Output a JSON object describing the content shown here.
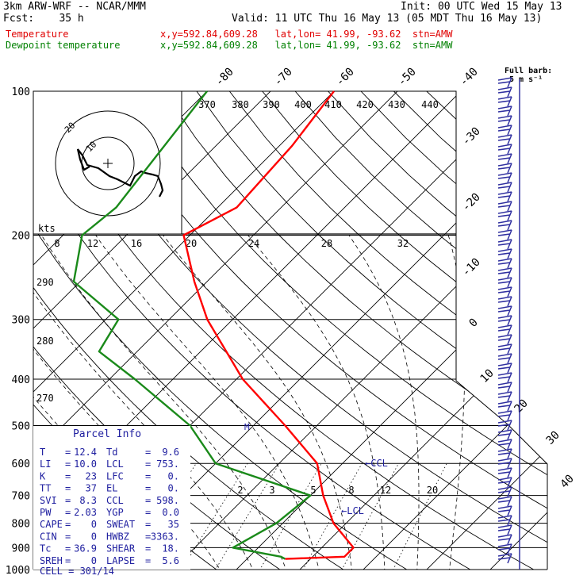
{
  "header": {
    "model": "3km ARW-WRF -- NCAR/MMM",
    "init": "Init: 00 UTC Wed 15 May 13",
    "fcst": "Fcst:    35 h",
    "valid": "Valid: 11 UTC Thu 16 May 13 (05 MDT Thu 16 May 13)"
  },
  "series_info": [
    {
      "name": "Temperature",
      "info": "x,y=592.84,609.28   lat,lon= 41.99, -93.62  stn=AMW",
      "color": "#e00000"
    },
    {
      "name": "Dewpoint temperature",
      "info": "x,y=592.84,609.28   lat,lon= 41.99, -93.62  stn=AMW",
      "color": "#008000"
    }
  ],
  "colors": {
    "temperature": "#ff0000",
    "dewpoint": "#1a8a1a",
    "barbs": "#3030a0",
    "grid": "#000000",
    "parcel": "#2020a0"
  },
  "wind_legend": {
    "line1": "Full barb:",
    "line2": "5 m s⁻¹"
  },
  "hodograph": {
    "unit_label": "kts",
    "ring_labels": [
      "20",
      "10"
    ]
  },
  "chart_data": {
    "type": "line",
    "title": "",
    "pressure_levels": [
      100,
      200,
      300,
      400,
      500,
      600,
      700,
      800,
      900,
      1000
    ],
    "ylim": [
      1000,
      100
    ],
    "xlabel": "",
    "ylabel": "",
    "isotherm_labels": [
      "-80",
      "-70",
      "-60",
      "-50",
      "-40",
      "-30",
      "-20",
      "-10",
      "0",
      "10",
      "20",
      "30",
      "40"
    ],
    "theta_labels": [
      "370",
      "380",
      "390",
      "400",
      "410",
      "420",
      "430",
      "440"
    ],
    "mixing_ratio_labels": [
      "8",
      "12",
      "16",
      "20",
      "24",
      "28",
      "32"
    ],
    "mixing_ratio_labels_low": [
      "2",
      "3",
      "5",
      "8",
      "12",
      "20"
    ],
    "adiabat_labels": [
      "290",
      "280",
      "270"
    ],
    "series": [
      {
        "name": "Temperature",
        "p": [
          100,
          130,
          175,
          200,
          250,
          300,
          400,
          500,
          600,
          700,
          800,
          900,
          940,
          950
        ],
        "t": [
          -60,
          -58,
          -57,
          -61,
          -52,
          -44,
          -29,
          -15,
          -4,
          2,
          8,
          15,
          15,
          6
        ]
      },
      {
        "name": "Dewpoint temperature",
        "p": [
          100,
          175,
          200,
          250,
          300,
          350,
          400,
          500,
          600,
          700,
          800,
          900,
          940,
          950
        ],
        "t": [
          -80,
          -76,
          -77,
          -71,
          -58,
          -56,
          -46,
          -30,
          -20,
          0,
          -1,
          -4,
          5,
          6
        ]
      }
    ],
    "annotations": [
      "CCL",
      "LCL"
    ]
  },
  "parcel_info": {
    "title": "Parcel Info",
    "rows": [
      {
        "k1": "T",
        "v1": "12.4",
        "k2": "Td",
        "v2": "9.6"
      },
      {
        "k1": "LI",
        "v1": "10.0",
        "k2": "LCL",
        "v2": "753."
      },
      {
        "k1": "K",
        "v1": "23",
        "k2": "LFC",
        "v2": "0."
      },
      {
        "k1": "TT",
        "v1": "37",
        "k2": "EL",
        "v2": "0."
      },
      {
        "k1": "SVI",
        "v1": "8.3",
        "k2": "CCL",
        "v2": "598."
      },
      {
        "k1": "PW",
        "v1": "2.03",
        "k2": "YGP",
        "v2": "0.0"
      },
      {
        "k1": "CAPE",
        "v1": "0",
        "k2": "SWEAT",
        "v2": "35"
      },
      {
        "k1": "CIN",
        "v1": "0",
        "k2": "HWBZ",
        "v2": "3363."
      },
      {
        "k1": "Tc",
        "v1": "36.9",
        "k2": "SHEAR",
        "v2": "18."
      },
      {
        "k1": "SREH",
        "v1": "0",
        "k2": "LAPSE",
        "v2": "5.6"
      }
    ],
    "cell": "CELL = 301/14"
  }
}
